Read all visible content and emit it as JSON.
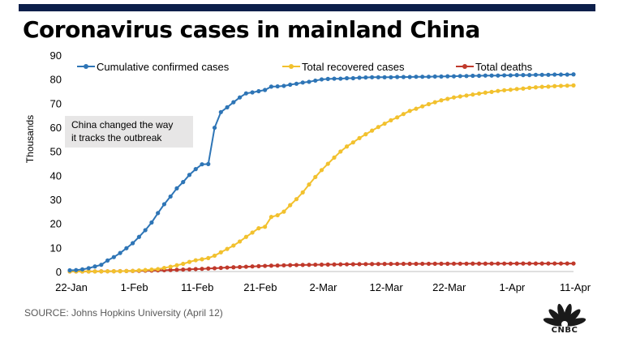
{
  "header": {
    "title": "Coronavirus cases in mainland China",
    "source": "SOURCE: Johns Hopkins University (April 12)"
  },
  "brand": {
    "logo_text": "CNBC",
    "bar_color": "#0c1f4a"
  },
  "chart_data": {
    "type": "line",
    "title": "Coronavirus cases in mainland China",
    "ylabel": "Thousands",
    "xlabel": "",
    "ylim": [
      0,
      90
    ],
    "yticks": [
      0,
      10,
      20,
      30,
      40,
      50,
      60,
      70,
      80,
      90
    ],
    "xtick_labels": [
      "22-Jan",
      "1-Feb",
      "11-Feb",
      "21-Feb",
      "2-Mar",
      "12-Mar",
      "22-Mar",
      "1-Apr",
      "11-Apr"
    ],
    "x_start": "22-Jan",
    "x_end": "11-Apr",
    "grid": false,
    "legend": "top",
    "annotation": {
      "lines": [
        "China changed the way",
        "it tracks the outbreak"
      ],
      "x": "13-Feb",
      "y": 59.8
    },
    "series": [
      {
        "name": "Cumulative confirmed cases",
        "color": "#2e75b6",
        "values": [
          0.5,
          0.6,
          0.9,
          1.4,
          2.1,
          2.8,
          4.6,
          6.0,
          7.7,
          9.7,
          11.8,
          14.4,
          17.2,
          20.4,
          24.3,
          28.0,
          31.2,
          34.6,
          37.2,
          40.2,
          42.6,
          44.6,
          44.7,
          59.8,
          66.3,
          68.3,
          70.4,
          72.4,
          74.1,
          74.5,
          75.0,
          75.5,
          76.9,
          77.0,
          77.2,
          77.7,
          78.1,
          78.6,
          78.9,
          79.4,
          79.9,
          80.1,
          80.2,
          80.2,
          80.4,
          80.4,
          80.6,
          80.7,
          80.8,
          80.8,
          80.8,
          80.8,
          80.9,
          80.9,
          80.9,
          81.0,
          81.0,
          81.0,
          81.1,
          81.1,
          81.2,
          81.2,
          81.3,
          81.3,
          81.4,
          81.4,
          81.5,
          81.5,
          81.5,
          81.6,
          81.6,
          81.7,
          81.7,
          81.7,
          81.8,
          81.8,
          81.8,
          81.9,
          81.9,
          81.9,
          82.0
        ]
      },
      {
        "name": "Total recovered cases",
        "color": "#f2c12e",
        "values": [
          0.03,
          0.03,
          0.04,
          0.04,
          0.05,
          0.06,
          0.1,
          0.12,
          0.13,
          0.22,
          0.28,
          0.47,
          0.62,
          0.81,
          1.0,
          1.5,
          2.0,
          2.6,
          3.2,
          4.0,
          4.7,
          5.1,
          5.6,
          6.6,
          8.0,
          9.4,
          10.8,
          12.5,
          14.4,
          16.2,
          18.0,
          18.6,
          22.7,
          23.4,
          24.9,
          27.6,
          30.1,
          32.9,
          36.2,
          39.3,
          42.2,
          44.8,
          47.4,
          49.9,
          52.0,
          53.7,
          55.5,
          57.1,
          58.6,
          60.1,
          61.5,
          62.9,
          64.1,
          65.5,
          66.8,
          67.7,
          68.7,
          69.6,
          70.4,
          71.2,
          71.8,
          72.4,
          72.8,
          73.2,
          73.6,
          74.0,
          74.4,
          74.7,
          75.1,
          75.4,
          75.6,
          75.9,
          76.1,
          76.4,
          76.6,
          76.8,
          76.9,
          77.1,
          77.2,
          77.3,
          77.4
        ]
      },
      {
        "name": "Total deaths",
        "color": "#c0392b",
        "values": [
          0.02,
          0.03,
          0.03,
          0.04,
          0.06,
          0.08,
          0.1,
          0.13,
          0.17,
          0.21,
          0.26,
          0.3,
          0.36,
          0.43,
          0.49,
          0.56,
          0.64,
          0.72,
          0.81,
          0.91,
          1.02,
          1.11,
          1.26,
          1.37,
          1.52,
          1.67,
          1.77,
          1.87,
          2.0,
          2.12,
          2.24,
          2.34,
          2.44,
          2.5,
          2.59,
          2.66,
          2.72,
          2.75,
          2.79,
          2.84,
          2.87,
          2.91,
          2.94,
          2.98,
          3.02,
          3.04,
          3.07,
          3.1,
          3.12,
          3.14,
          3.16,
          3.17,
          3.18,
          3.19,
          3.2,
          3.21,
          3.22,
          3.23,
          3.24,
          3.25,
          3.25,
          3.26,
          3.27,
          3.27,
          3.28,
          3.28,
          3.29,
          3.3,
          3.3,
          3.31,
          3.31,
          3.32,
          3.32,
          3.33,
          3.33,
          3.33,
          3.34,
          3.34,
          3.34,
          3.34,
          3.34
        ]
      }
    ]
  }
}
